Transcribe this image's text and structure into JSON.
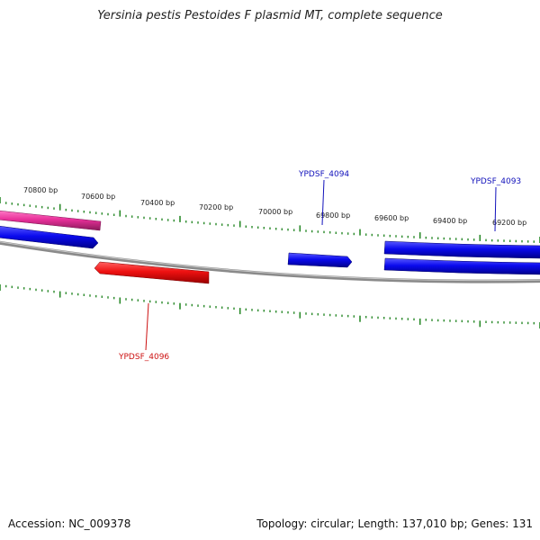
{
  "title": "Yersinia pestis Pestoides F plasmid MT, complete sequence",
  "footer": {
    "accession": "Accession: NC_009378",
    "info": "Topology: circular; Length: 137,010 bp; Genes: 131"
  },
  "scale_labels": [
    "70800 bp",
    "70600 bp",
    "70400 bp",
    "70200 bp",
    "70000 bp",
    "69800 bp",
    "69600 bp",
    "69400 bp",
    "69200 bp"
  ],
  "gene_labels": [
    {
      "id": "YPDSF_4094",
      "color": "#1111bb"
    },
    {
      "id": "YPDSF_4093",
      "color": "#1111bb"
    },
    {
      "id": "YPDSF_4096",
      "color": "#cc1111"
    }
  ],
  "colors": {
    "backbone": "#888888",
    "tick": "#2a8a2a",
    "forward_gene": "#0a0aee",
    "reverse_gene": "#ee1111",
    "feature_pink": "#e8309a"
  }
}
